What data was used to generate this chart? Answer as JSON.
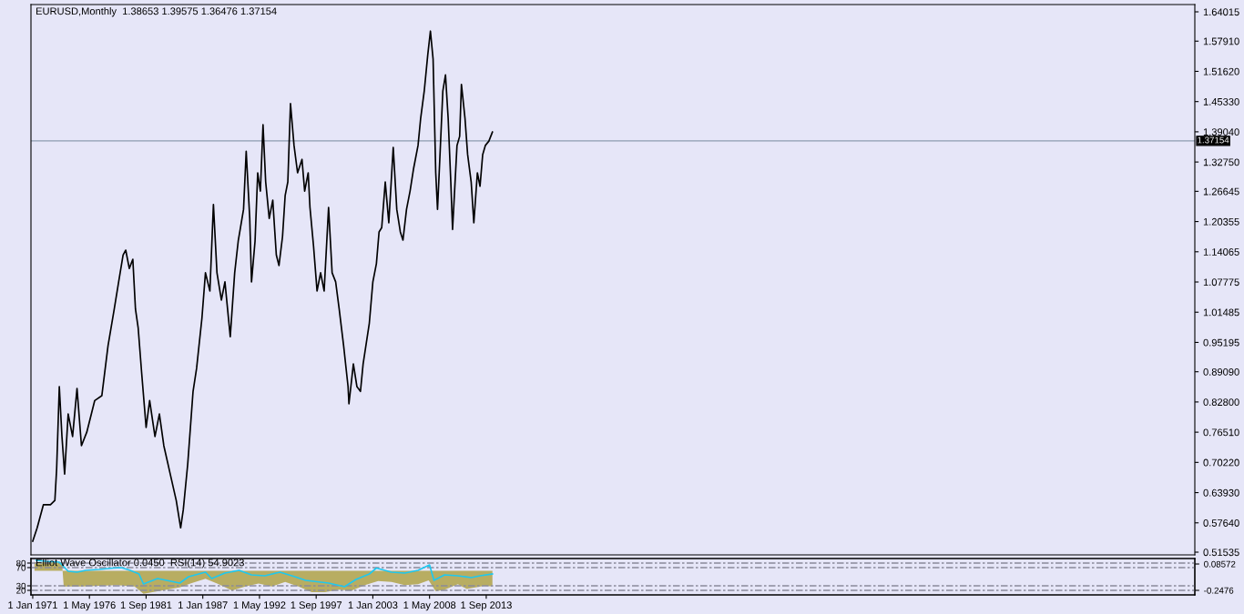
{
  "chart_data": [
    {
      "type": "line",
      "title": "EURUSD,Monthly  1.38653 1.39575 1.36476 1.37154",
      "xlim": [
        "1970-11",
        "2080-05"
      ],
      "ylim": [
        0.5097,
        1.6553
      ],
      "yticks": [
        {
          "value": 0.51535,
          "label": "0.51535"
        },
        {
          "value": 0.5764,
          "label": "0.57640"
        },
        {
          "value": 0.6393,
          "label": "0.63930"
        },
        {
          "value": 0.7022,
          "label": "0.70220"
        },
        {
          "value": 0.7651,
          "label": "0.76510"
        },
        {
          "value": 0.828,
          "label": "0.82800"
        },
        {
          "value": 0.8909,
          "label": "0.89090"
        },
        {
          "value": 0.95195,
          "label": "0.95195"
        },
        {
          "value": 1.01485,
          "label": "1.01485"
        },
        {
          "value": 1.07775,
          "label": "1.07775"
        },
        {
          "value": 1.14065,
          "label": "1.14065"
        },
        {
          "value": 1.20355,
          "label": "1.20355"
        },
        {
          "value": 1.26645,
          "label": "1.26645"
        },
        {
          "value": 1.3275,
          "label": "1.32750"
        },
        {
          "value": 1.3904,
          "label": "1.39040"
        },
        {
          "value": 1.4533,
          "label": "1.45330"
        },
        {
          "value": 1.5162,
          "label": "1.51620"
        },
        {
          "value": 1.5791,
          "label": "1.57910"
        },
        {
          "value": 1.64015,
          "label": "1.64015"
        }
      ],
      "tick_labels": "y",
      "grid": false,
      "legend": false,
      "ref_lines": [
        {
          "axis": "y",
          "value": 1.37154,
          "label": "1.37154",
          "color": "#8c9cb0",
          "line_style": "solid"
        }
      ],
      "series": [
        {
          "color": "#000000",
          "x": [
            "1971-01",
            "1971-06",
            "1972-01",
            "1972-09",
            "1973-02",
            "1973-04",
            "1973-07",
            "1973-10",
            "1974-01",
            "1974-05",
            "1974-10",
            "1975-03",
            "1975-08",
            "1976-02",
            "1976-11",
            "1977-07",
            "1978-02",
            "1978-09",
            "1979-02",
            "1979-07",
            "1979-10",
            "1980-02",
            "1980-06",
            "1980-09",
            "1980-12",
            "1981-04",
            "1981-09",
            "1982-01",
            "1982-07",
            "1982-12",
            "1983-05",
            "1983-12",
            "1984-07",
            "1984-12",
            "1985-03",
            "1985-08",
            "1986-02",
            "1986-06",
            "1986-12",
            "1987-04",
            "1987-09",
            "1988-01",
            "1988-05",
            "1988-10",
            "1989-02",
            "1989-08",
            "1990-01",
            "1990-05",
            "1990-11",
            "1991-02",
            "1991-06",
            "1991-08",
            "1991-12",
            "1992-03",
            "1992-06",
            "1992-09",
            "1992-12",
            "1993-04",
            "1993-08",
            "1993-12",
            "1994-03",
            "1994-07",
            "1994-10",
            "1995-01",
            "1995-04",
            "1995-08",
            "1995-12",
            "1996-05",
            "1996-08",
            "1996-12",
            "1997-02",
            "1997-06",
            "1997-10",
            "1998-02",
            "1998-06",
            "1998-11",
            "1999-03",
            "1999-07",
            "1999-11",
            "2000-04",
            "2000-09",
            "2000-10",
            "2001-03",
            "2001-07",
            "2001-11",
            "2002-02",
            "2002-09",
            "2003-01",
            "2003-05",
            "2003-08",
            "2003-11",
            "2004-03",
            "2004-07",
            "2004-12",
            "2005-04",
            "2005-08",
            "2005-11",
            "2006-03",
            "2006-07",
            "2006-11",
            "2007-04",
            "2007-07",
            "2007-11",
            "2008-03",
            "2008-06",
            "2008-09",
            "2008-12",
            "2009-02",
            "2009-05",
            "2009-08",
            "2009-11",
            "2010-02",
            "2010-05",
            "2010-07",
            "2010-12",
            "2011-03",
            "2011-05",
            "2011-09",
            "2011-12",
            "2012-04",
            "2012-07",
            "2012-11",
            "2013-02",
            "2013-05",
            "2013-08",
            "2013-12",
            "2014-04"
          ],
          "values": [
            0.538,
            0.566,
            0.614,
            0.614,
            0.623,
            0.689,
            0.86,
            0.756,
            0.678,
            0.803,
            0.756,
            0.856,
            0.737,
            0.765,
            0.831,
            0.841,
            0.945,
            1.021,
            1.078,
            1.134,
            1.144,
            1.106,
            1.125,
            1.021,
            0.983,
            0.888,
            0.775,
            0.831,
            0.756,
            0.803,
            0.737,
            0.68,
            0.623,
            0.566,
            0.604,
            0.699,
            0.85,
            0.898,
            1.002,
            1.097,
            1.059,
            1.239,
            1.097,
            1.04,
            1.078,
            0.964,
            1.097,
            1.163,
            1.229,
            1.35,
            1.21,
            1.078,
            1.163,
            1.305,
            1.267,
            1.405,
            1.286,
            1.21,
            1.248,
            1.134,
            1.112,
            1.172,
            1.258,
            1.286,
            1.449,
            1.362,
            1.305,
            1.333,
            1.267,
            1.305,
            1.233,
            1.153,
            1.059,
            1.097,
            1.059,
            1.233,
            1.097,
            1.078,
            1.021,
            0.945,
            0.86,
            0.824,
            0.907,
            0.86,
            0.85,
            0.907,
            0.992,
            1.078,
            1.116,
            1.182,
            1.191,
            1.286,
            1.201,
            1.358,
            1.229,
            1.182,
            1.165,
            1.229,
            1.267,
            1.314,
            1.362,
            1.419,
            1.475,
            1.551,
            1.6,
            1.542,
            1.305,
            1.229,
            1.35,
            1.475,
            1.509,
            1.419,
            1.286,
            1.187,
            1.362,
            1.381,
            1.489,
            1.419,
            1.343,
            1.286,
            1.201,
            1.305,
            1.277,
            1.343,
            1.362,
            1.371,
            1.39
          ]
        }
      ]
    },
    {
      "type": "line",
      "title": "Elliot Wave Oscillator 0.0450  RSI(14) 54.9023",
      "xlim": [
        "1970-11",
        "2080-05"
      ],
      "xticks": [
        {
          "value": "1971-01",
          "label": "1 Jan 1971"
        },
        {
          "value": "1976-05",
          "label": "1 May 1976"
        },
        {
          "value": "1981-09",
          "label": "1 Sep 1981"
        },
        {
          "value": "1987-01",
          "label": "1 Jan 1987"
        },
        {
          "value": "1992-05",
          "label": "1 May 1992"
        },
        {
          "value": "1997-09",
          "label": "1 Sep 1997"
        },
        {
          "value": "2003-01",
          "label": "1 Jan 2003"
        },
        {
          "value": "2008-05",
          "label": "1 May 2008"
        },
        {
          "value": "2013-09",
          "label": "1 Sep 2013"
        }
      ],
      "ylim": [
        10,
        90
      ],
      "yticks": [
        20,
        30,
        70,
        80
      ],
      "y2lim": [
        -0.305,
        0.155
      ],
      "y2ticks": [
        -0.2476,
        0.08572
      ],
      "grid": false,
      "legend": false,
      "ref_lines": [
        {
          "axis": "y",
          "value": 80,
          "color": "#8a8a9a",
          "line_style": "dashed"
        },
        {
          "axis": "y",
          "value": 70,
          "color": "#8a8a9a",
          "line_style": "dashed"
        },
        {
          "axis": "y",
          "value": 30,
          "color": "#8a8a9a",
          "line_style": "dashed"
        },
        {
          "axis": "y",
          "value": 20,
          "color": "#8a8a9a",
          "line_style": "dashed"
        }
      ],
      "series": [
        {
          "type": "area",
          "axis": "y2",
          "color": "#b8ad62",
          "x": [
            "1971-03",
            "1973-10",
            "1973-12",
            "1974-10",
            "1975-08",
            "1977-04",
            "1978-12",
            "1980-08",
            "1981-06",
            "1982-10",
            "1984-11",
            "1985-11",
            "1987-04",
            "1988-07",
            "1989-10",
            "1991-01",
            "1992-04",
            "1993-07",
            "1994-10",
            "1996-01",
            "1997-04",
            "1998-07",
            "1999-10",
            "2001-01",
            "2002-04",
            "2003-07",
            "2004-10",
            "2006-01",
            "2007-04",
            "2008-04",
            "2008-12",
            "2009-10",
            "2011-01",
            "2011-11",
            "2012-09",
            "2013-07",
            "2014-04"
          ],
          "values": [
            0.11,
            0.11,
            -0.2,
            -0.2,
            -0.2,
            -0.19,
            -0.18,
            -0.2,
            -0.29,
            -0.26,
            -0.21,
            -0.16,
            -0.1,
            -0.17,
            -0.25,
            -0.2,
            -0.16,
            -0.2,
            -0.14,
            -0.2,
            -0.27,
            -0.27,
            -0.24,
            -0.25,
            -0.18,
            -0.13,
            -0.14,
            -0.18,
            -0.17,
            -0.12,
            -0.26,
            -0.24,
            -0.17,
            -0.23,
            -0.21,
            -0.19,
            -0.2
          ]
        },
        {
          "type": "line",
          "axis": "y",
          "color": "#1ec8f0",
          "x": [
            "1971-05",
            "1972-04",
            "1973-07",
            "1974-05",
            "1975-03",
            "1976-01",
            "1977-04",
            "1978-08",
            "1979-05",
            "1980-03",
            "1981-01",
            "1981-06",
            "1982-10",
            "1984-01",
            "1984-11",
            "1985-09",
            "1987-04",
            "1987-11",
            "1989-02",
            "1990-06",
            "1991-08",
            "1992-11",
            "1994-04",
            "1995-09",
            "1996-09",
            "1998-11",
            "2000-05",
            "2001-06",
            "2002-09",
            "2003-05",
            "2004-10",
            "2006-01",
            "2007-04",
            "2008-05",
            "2008-10",
            "2009-10",
            "2011-01",
            "2012-04",
            "2013-02",
            "2014-04"
          ],
          "values": [
            86,
            84,
            82,
            62,
            60,
            64,
            66,
            69,
            70,
            64,
            56,
            34,
            46,
            40,
            36,
            50,
            60,
            46,
            58,
            64,
            54,
            52,
            60,
            50,
            42,
            36,
            28,
            44,
            56,
            69,
            60,
            58,
            64,
            76,
            42,
            54,
            52,
            48,
            52,
            56
          ]
        }
      ]
    }
  ]
}
